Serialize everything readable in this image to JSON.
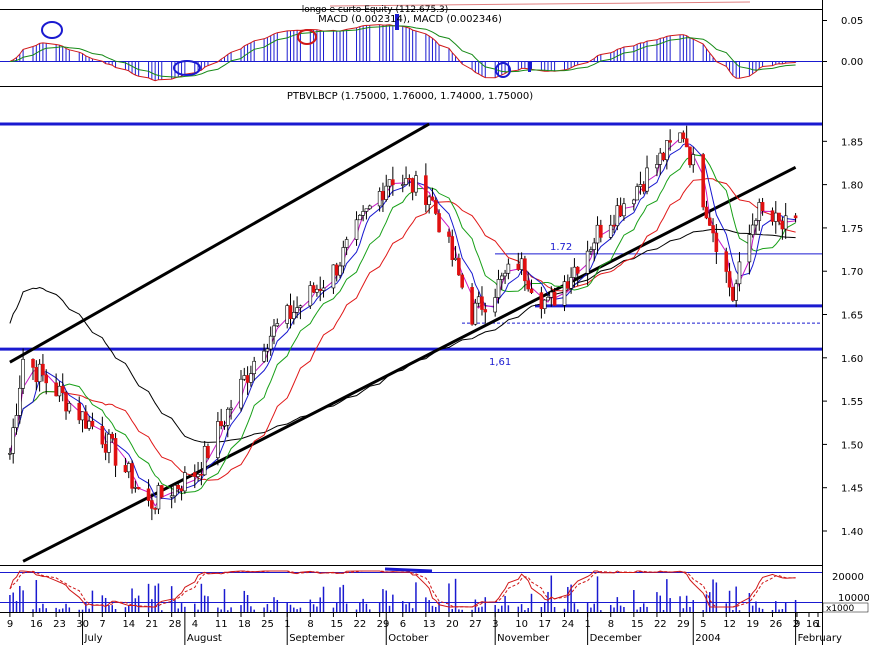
{
  "chart_data": [
    {
      "type": "line",
      "panel": "macd",
      "title_line1": "longo e curto Equity (112.675.3)",
      "title_line2": "MACD (0.002314), MACD (0.002346)",
      "y_ticks": [
        "0.05",
        "0.00"
      ],
      "ylim": [
        -0.015,
        0.06
      ],
      "colors": {
        "histogram": "#1a1ad0",
        "macd": "#d01818",
        "signal": "#178a17"
      }
    },
    {
      "type": "candlestick",
      "panel": "price",
      "title": "PTBVLBCP (1.75000, 1.76000, 1.74000, 1.75000)",
      "y_ticks": [
        "1.85",
        "1.80",
        "1.75",
        "1.70",
        "1.65",
        "1.60",
        "1.55",
        "1.50",
        "1.45",
        "1.40"
      ],
      "ylim": [
        1.37,
        1.92
      ],
      "x_start": "2003-06-09",
      "x_end": "2004-02-02",
      "horizontal_levels": [
        1.87,
        1.72,
        1.66,
        1.64,
        1.61
      ],
      "annotations": [
        {
          "text": "1.72",
          "value": 1.72
        },
        {
          "text": "1,61",
          "value": 1.61
        }
      ],
      "trend_lines": [
        {
          "from": [
            "2003-06-09",
            1.595
          ],
          "to": [
            "2003-10-14",
            1.87
          ]
        },
        {
          "from": [
            "2003-06-13",
            1.365
          ],
          "to": [
            "2004-02-02",
            1.82
          ]
        }
      ],
      "key_prices": [
        {
          "date": "2003-06-09",
          "close": 1.49
        },
        {
          "date": "2003-06-13",
          "close": 1.6
        },
        {
          "date": "2003-07-07",
          "close": 1.51
        },
        {
          "date": "2003-07-21",
          "close": 1.43
        },
        {
          "date": "2003-08-05",
          "close": 1.47
        },
        {
          "date": "2003-08-25",
          "close": 1.62
        },
        {
          "date": "2003-09-15",
          "close": 1.7
        },
        {
          "date": "2003-10-02",
          "close": 1.81
        },
        {
          "date": "2003-10-14",
          "close": 1.79
        },
        {
          "date": "2003-10-27",
          "close": 1.65
        },
        {
          "date": "2003-11-10",
          "close": 1.71
        },
        {
          "date": "2003-11-19",
          "close": 1.66
        },
        {
          "date": "2003-12-05",
          "close": 1.75
        },
        {
          "date": "2003-12-30",
          "close": 1.86
        },
        {
          "date": "2004-01-08",
          "close": 1.75
        },
        {
          "date": "2004-01-14",
          "close": 1.67
        },
        {
          "date": "2004-01-21",
          "close": 1.77
        },
        {
          "date": "2004-01-29",
          "close": 1.75
        }
      ],
      "colors": {
        "up": "#ffffff",
        "down": "#e01010",
        "ma_red": "#e01818",
        "ma_green": "#18a018",
        "ma_blue": "#1818d0",
        "ma_magenta": "#c818c8",
        "ma_black": "#000000",
        "channel": "#1a1ad0"
      }
    },
    {
      "type": "bar",
      "panel": "volume",
      "y_ticks": [
        "20000",
        "10000"
      ],
      "y_unit": "x1000",
      "ylim": [
        0,
        25000
      ]
    }
  ],
  "x_axis": {
    "day_ticks": [
      "9",
      "16",
      "23",
      "30",
      "7",
      "14",
      "21",
      "28",
      "4",
      "11",
      "18",
      "25",
      "1",
      "8",
      "15",
      "22",
      "29",
      "6",
      "13",
      "20",
      "27",
      "3",
      "10",
      "17",
      "24",
      "1",
      "8",
      "15",
      "22",
      "29",
      "5",
      "12",
      "19",
      "26",
      "2",
      "9",
      "16",
      "1"
    ],
    "months": [
      "July",
      "August",
      "September",
      "October",
      "November",
      "December",
      "2004",
      "February"
    ]
  }
}
